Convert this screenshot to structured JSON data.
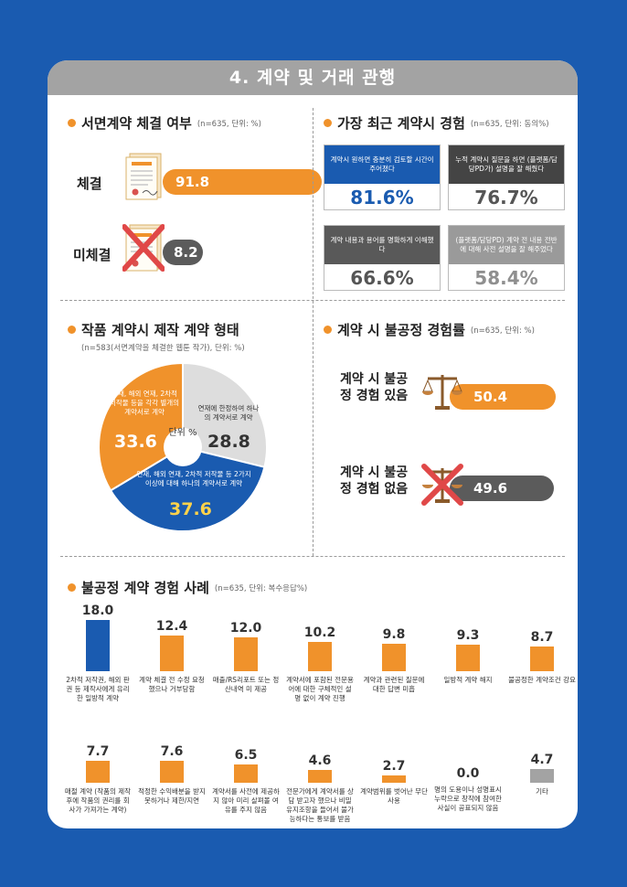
{
  "banner": "4. 계약 및 거래 관행",
  "colors": {
    "orange": "#f0922b",
    "blue": "#1a5bb0",
    "dark_gray": "#5b5b5b",
    "light_gray": "#c9c9c9",
    "gray_bar": "#a3a3a3"
  },
  "written_contract": {
    "title": "서면계약 체결 여부",
    "note": "(n=635, 단위: %)",
    "chart_data": {
      "type": "bar",
      "categories": [
        "체결",
        "미체결"
      ],
      "values": [
        91.8,
        8.2
      ],
      "value_labels": [
        "91.8",
        "8.2"
      ],
      "colors": [
        "#f0922b",
        "#5b5b5b"
      ]
    }
  },
  "recent_experience": {
    "title": "가장 최근 계약시 경험",
    "note": "(n=635, 단위: 동의%)",
    "chart_data": {
      "type": "table",
      "items": [
        {
          "label": "계약시 원하면 충분히 검토할 시간이 주어졌다",
          "value": 81.6,
          "value_label": "81.6%",
          "color": "#1a5bb0"
        },
        {
          "label": "누적 계약시 질문을 하면 (플랫폼/담당PD가) 설명을 잘 해줬다",
          "value": 76.7,
          "value_label": "76.7%",
          "color": "#444444"
        },
        {
          "label": "계약 내용과 용어를 명확하게 이해했다",
          "value": 66.6,
          "value_label": "66.6%",
          "color": "#595959"
        },
        {
          "label": "(플랫폼/담당PD) 계약 전 내용 전반에 대해 사전 설명을 잘 해주었다",
          "value": 58.4,
          "value_label": "58.4%",
          "color": "#9a9a9a"
        }
      ]
    }
  },
  "contract_type": {
    "title": "작품 계약시 제작 계약 형태",
    "note": "(n=583(서면계약을 체결한 웹툰 작가), 단위: %)",
    "center_label": "단위 %",
    "chart_data": {
      "type": "pie",
      "slices": [
        {
          "label": "연재에 한정하여 하나의 계약서로 계약",
          "value": 28.8,
          "value_label": "28.8",
          "color": "#dddddd"
        },
        {
          "label": "연재, 해외 연재, 2차적 저작물 등 2가지 이상에 대해 하나의 계약서로 계약",
          "value": 37.6,
          "value_label": "37.6",
          "color": "#1a5bb0"
        },
        {
          "label": "연재, 해외 연재, 2차적 저작물 등을 각각 별개의 계약서로 계약",
          "value": 33.6,
          "value_label": "33.6",
          "color": "#f0922b"
        }
      ]
    }
  },
  "unfair_rate": {
    "title": "계약 시 불공정 경험률",
    "note": "(n=635, 단위: %)",
    "chart_data": {
      "type": "bar",
      "categories": [
        "계약 시 불공정 경험 있음",
        "계약 시 불공정 경험 없음"
      ],
      "values": [
        50.4,
        49.6
      ],
      "value_labels": [
        "50.4",
        "49.6"
      ],
      "colors": [
        "#f0922b",
        "#5b5b5b"
      ]
    }
  },
  "unfair_cases": {
    "title": "불공정 계약 경험 사례",
    "note": "(n=635, 단위: 복수응답%)",
    "chart_data": {
      "type": "bar",
      "ylim": [
        0,
        18
      ],
      "items": [
        {
          "label": "2차적 저작권, 해외 판권 등 제작사에게 유리한 일방적 계약",
          "value": 18.0,
          "value_label": "18.0",
          "color": "#1a5bb0"
        },
        {
          "label": "계약 체결 전 수정 요청 했으나 거부당함",
          "value": 12.4,
          "value_label": "12.4",
          "color": "#f0922b"
        },
        {
          "label": "매출/RS리포트 또는 정산내역 미 제공",
          "value": 12.0,
          "value_label": "12.0",
          "color": "#f0922b"
        },
        {
          "label": "계약서에 포함된 전문용어에 대한 구체적인 설명 없이 계약 진행",
          "value": 10.2,
          "value_label": "10.2",
          "color": "#f0922b"
        },
        {
          "label": "계약과 관련된 질문에 대한 답변 미흡",
          "value": 9.8,
          "value_label": "9.8",
          "color": "#f0922b"
        },
        {
          "label": "일방적 계약 해지",
          "value": 9.3,
          "value_label": "9.3",
          "color": "#f0922b"
        },
        {
          "label": "불공정한 계약조건 강요",
          "value": 8.7,
          "value_label": "8.7",
          "color": "#f0922b"
        },
        {
          "label": "매절 계약 (작품의 제작 후에 작품의 권리를 회사가 가져가는 계약)",
          "value": 7.7,
          "value_label": "7.7",
          "color": "#f0922b"
        },
        {
          "label": "적정한 수익배분을 받지 못하거나 제한/지연",
          "value": 7.6,
          "value_label": "7.6",
          "color": "#f0922b"
        },
        {
          "label": "계약서를 사전에 제공하지 않아 미리 살펴볼 여유를 주지 않음",
          "value": 6.5,
          "value_label": "6.5",
          "color": "#f0922b"
        },
        {
          "label": "전문가에게 계약서를 상담 받고자 했으나 비밀유지조항을 들어서 불가능하다는 통보를 받음",
          "value": 4.6,
          "value_label": "4.6",
          "color": "#f0922b"
        },
        {
          "label": "계약범위를 벗어난 무단사용",
          "value": 2.7,
          "value_label": "2.7",
          "color": "#f0922b"
        },
        {
          "label": "명의 도용이나 성명표시 누락으로 창작에 참여한 사실이 공표되지 않음",
          "value": 0.0,
          "value_label": "0.0",
          "color": "#f0922b"
        },
        {
          "label": "기타",
          "value": 4.7,
          "value_label": "4.7",
          "color": "#a3a3a3"
        }
      ]
    }
  }
}
